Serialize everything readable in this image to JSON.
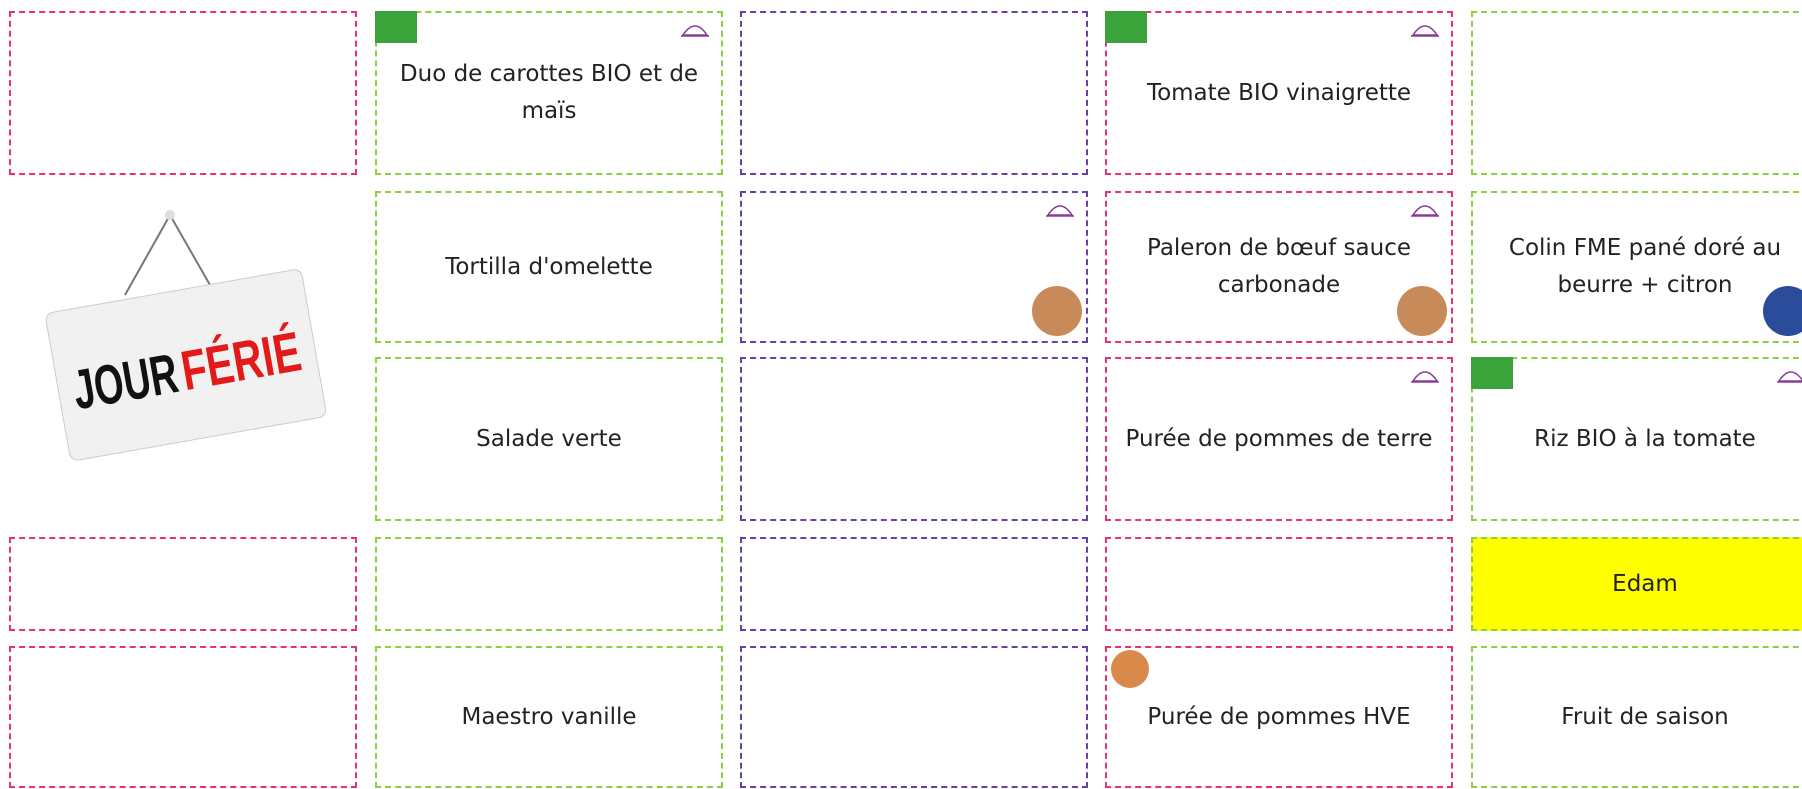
{
  "menu": {
    "rows": [
      [
        null,
        "Duo de carottes BIO et de maïs",
        null,
        "Tomate BIO vinaigrette",
        null
      ],
      [
        null,
        "Tortilla d'omelette",
        null,
        "Paleron de bœuf sauce carbonade",
        "Colin FME pané doré au beurre + citron"
      ],
      [
        null,
        "Salade verte",
        null,
        "Purée de pommes de terre",
        "Riz BIO à la tomate"
      ],
      [
        null,
        null,
        null,
        null,
        "Edam"
      ],
      [
        null,
        "Maestro vanille",
        null,
        "Purée de pommes HVE",
        "Fruit de saison"
      ]
    ],
    "sign": {
      "word1": "JOUR",
      "word2": "FÉRIÉ"
    }
  }
}
